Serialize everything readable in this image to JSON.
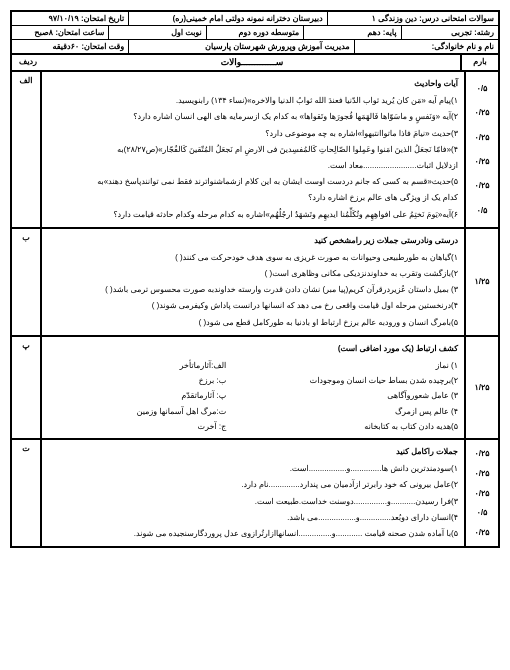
{
  "header": {
    "r1c1": "سوالات امتحانی درس: دین وزندگی ۱",
    "r1c2": "دبیرستان دخترانه نمونه دولتی امام خمینی(ره)",
    "r1c3": "تاریخ امتحان: ۹۷/۱۰/۱۹",
    "r2c1": "رشته: تجربی",
    "r2c2": "پایه: دهم",
    "r2c3": "متوسطه دوره دوم",
    "r2c4": "نوبت اول",
    "r2c5": "ساعت امتحان: ۸صبح",
    "r3c1": "نام و نام خانوادگی:",
    "r3c2": "مدیریت آموزش وپرورش شهرستان پارسیان",
    "r3c3": "وقت امتحان: ۶۰دقیقه",
    "title": "ســـــــــــــوالات",
    "col_barem": "بارم",
    "col_radif": "ردیف"
  },
  "sec_a": {
    "radif": "الف",
    "heading": "آیات واحادیث",
    "q1": "۱)پیام آیه «مَن کان یُرید ثواب الدّنیا فعندَ الله ثوابُ الدنیا والاخره»(نساء ۱۳۴) رابنویسید.",
    "q2": "۲)آیه «وَنَفسٍ و ماسَوّاها فَالهَمَها فُجورَها وتَقواها» به کدام یک ازسرمایه های الهی انسان اشاره دارد؟",
    "q3": "۳)حدیث «نیامَ فاذا ماتواانتبهوا»اشاره به چه موضوعی دارد؟",
    "q4": "۴)«فامّا نَجعَلُ الذینَ امَنوا وعَمِلوا الصّالِحاتِ کَالمُفسِدینَ فی الارضِ ام نَجعَلُ المُتّقینَ کَالفُجّار»(ص۲۸/۲۷)به",
    "q4b": "ازدلایل اثبات........................معاد است.",
    "q5": "۵)حدیث«قسم به کسی که جانم دردست اوست ایشان به این کلام ازشماشنواترند فقط نمی توانندپاسخ دهند»به",
    "q5b": "کدام یک از ویژگی های عالم برزخ اشاره دارد؟",
    "q6": "۶)آیه«یَومَ نَختِمُ علی افواهِهِم وتُکَلِّمُنا ایدیهِم وتَشهَدُ ارجُلُهُم»اشاره به کدام مرحله وکدام حادثه قیامت دارد؟",
    "scores": [
      "۰/۵",
      "۰/۲۵",
      "۰/۲۵",
      "۰/۲۵",
      "۰/۲۵",
      "۰/۵"
    ]
  },
  "sec_b": {
    "radif": "ب",
    "heading": "درستی ونادرستی جملات زیر رامشخص کنید",
    "q1": "۱)گیاهان به طورطبیعی وحیوانات به صورت غریزی به سوی هدف خودحرکت می کنند(    )",
    "q2": "۲)بازگشت وتقرب به خداوندنزدیکی مکانی وظاهری است(    )",
    "q3": "۳) بمیل داستان عُزیردرقرآن کریم(پیا مبر) نشان دادن قدرت وارسته خداوندبه صورت محسوس ترمی باشد(    )",
    "q4": "۴)درنخستین مرحله اول قیامت واقعی رخ می دهد که انسانها درانست پاداش وکیفرمی شوند(    )",
    "q5": "۵)بامرگ انسان و ورودبه عالم برزخ ارتباط او بادنیا به طورکامل قطع می شود(    )",
    "score": "۱/۲۵"
  },
  "sec_p": {
    "radif": "پ",
    "heading": "کشف ارتباط (یک مورد اضافی است)",
    "r1r": "۱) نماز",
    "r1l": "الف:آثارماتأخر",
    "r2r": "۲)برچیده شدن بساط حیات انسان وموجودات",
    "r2l": "ب: برزخ",
    "r3r": "۳) عامل شعوروآگاهی",
    "r3l": "پ: آثارماتقدّم",
    "r4r": "۴) عالم پس ازمرگ",
    "r4l": "ت:مرگ اهل آسمانها وزمین",
    "r5r": "۵)هدیه دادن کتاب به کتابخانه",
    "r5l": "ج: آخرت",
    "score": "۱/۲۵"
  },
  "sec_t": {
    "radif": "ت",
    "heading": "جملات راکامل کنید",
    "q1": "۱)سودمندترین دانش ها..............و.................است.",
    "q2": "۲)عامل بیرونی که خود رابرتر ازآدمیان می پندارد..............نام دارد.",
    "q3": "۳)فرا رسیدن...........و...............دوسنت خداست.طبیعت است.",
    "q4": "۴)انسان دارای دوبُعد..............و.................می باشد.",
    "q5": "۵)با آماده شدن صحنه قیامت ............و...............انسانهاازارتُرازوی عدل پروردگارسنجیده می شوند.",
    "scores": [
      "۰/۲۵",
      "۰/۲۵",
      "۰/۲۵",
      "۰/۵",
      "۰/۲۵"
    ]
  }
}
